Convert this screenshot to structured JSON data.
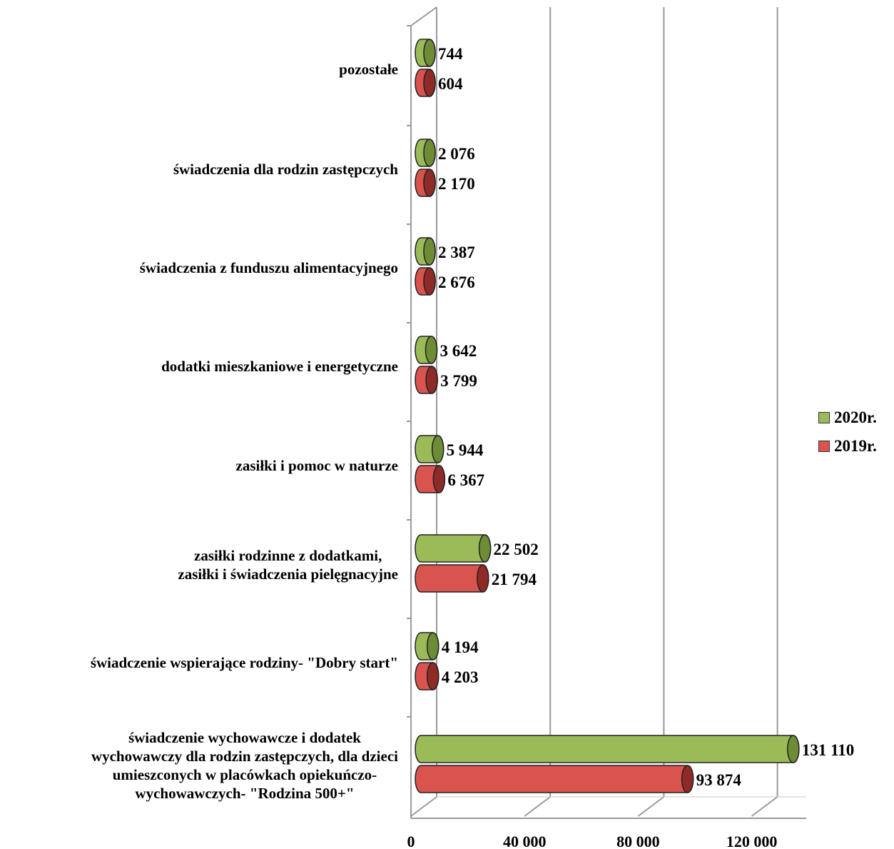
{
  "chart_data": {
    "type": "bar",
    "orientation": "horizontal",
    "style": "3d-cylinder",
    "categories": [
      "pozostałe",
      "świadczenia dla rodzin zastępczych",
      "świadczenia z funduszu alimentacyjnego",
      "dodatki mieszkaniowe i energetyczne",
      "zasiłki i pomoc w naturze",
      "zasiłki rodzinne z dodatkami,\nzasiłki i świadczenia pielęgnacyjne",
      "świadczenie wspierające rodziny- \"Dobry start\"",
      "świadczenie wychowawcze i dodatek\nwychowawczy dla rodzin zastępczych, dla dzieci\numieszconych w placówkach opiekuńczo-\nwychowawczych- \"Rodzina 500+\""
    ],
    "series": [
      {
        "name": "2020r.",
        "color": "#9BBB59",
        "dark_color": "#6E8B35",
        "values": [
          744,
          2076,
          2387,
          3642,
          5944,
          22502,
          4194,
          131110
        ],
        "labels": [
          "744",
          "2 076",
          "2 387",
          "3 642",
          "5 944",
          "22 502",
          "4 194",
          "131 110"
        ]
      },
      {
        "name": "2019r.",
        "color": "#D9534F",
        "dark_color": "#8E2A27",
        "values": [
          604,
          2170,
          2676,
          3799,
          6367,
          21794,
          4203,
          93874
        ],
        "labels": [
          "604",
          "2 170",
          "2 676",
          "3 799",
          "6 367",
          "21 794",
          "4 203",
          "93 874"
        ]
      }
    ],
    "x_ticks": [
      0,
      40000,
      80000,
      120000
    ],
    "x_tick_labels": [
      "0",
      "40 000",
      "80 000",
      "120 000"
    ],
    "xlim": [
      0,
      140000
    ],
    "grid": true,
    "legend_position": "right"
  }
}
